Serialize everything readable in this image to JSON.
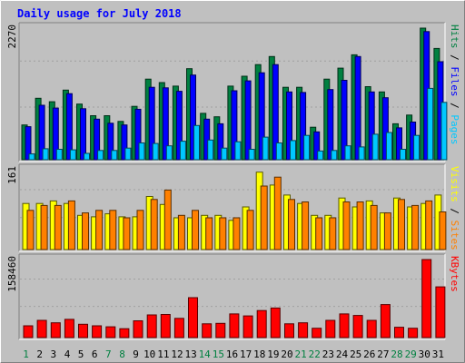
{
  "chart_data": {
    "type": "bar",
    "title": "Daily usage for July 2018",
    "categories": [
      "1",
      "2",
      "3",
      "4",
      "5",
      "6",
      "7",
      "8",
      "9",
      "10",
      "11",
      "12",
      "13",
      "14",
      "15",
      "16",
      "17",
      "18",
      "19",
      "20",
      "21",
      "22",
      "23",
      "24",
      "25",
      "26",
      "27",
      "28",
      "29",
      "30",
      "31"
    ],
    "weekend_days": [
      "1",
      "7",
      "8",
      "14",
      "15",
      "21",
      "22",
      "28",
      "29"
    ],
    "panels": [
      {
        "id": "requests",
        "ymax_label": "2270",
        "ylim": [
          0,
          2270
        ],
        "axis_labels": [
          {
            "text": "Pages",
            "color": "#00c8ff"
          },
          {
            "text": "Files",
            "color": "#0000ff"
          },
          {
            "text": "Hits",
            "color": "#008040"
          }
        ],
        "series": [
          {
            "name": "Hits",
            "color": "#008040",
            "values": [
              600,
              1060,
              1000,
              1200,
              960,
              760,
              760,
              660,
              920,
              1390,
              1330,
              1270,
              1570,
              800,
              740,
              1270,
              1440,
              1640,
              1780,
              1250,
              1250,
              560,
              1390,
              1580,
              1810,
              1260,
              1170,
              620,
              770,
              2270,
              1920
            ]
          },
          {
            "name": "Files",
            "color": "#0000ff",
            "values": [
              570,
              940,
              890,
              1140,
              880,
              700,
              630,
              600,
              870,
              1250,
              1240,
              1180,
              1460,
              700,
              620,
              1190,
              1360,
              1500,
              1640,
              1170,
              1160,
              480,
              1210,
              1370,
              1780,
              1170,
              1070,
              550,
              650,
              2210,
              1690
            ]
          },
          {
            "name": "Pages",
            "color": "#00c8ff",
            "values": [
              100,
              190,
              180,
              170,
              110,
              160,
              160,
              200,
              290,
              280,
              240,
              320,
              590,
              340,
              200,
              310,
              180,
              390,
              290,
              330,
              420,
              150,
              160,
              240,
              220,
              440,
              470,
              180,
              420,
              1230,
              990
            ]
          }
        ]
      },
      {
        "id": "visitors",
        "ymax_label": "161",
        "ylim": [
          0,
          161
        ],
        "axis_labels": [
          {
            "text": "Sites",
            "color": "#ff8000"
          },
          {
            "text": "Visits",
            "color": "#ffff00"
          }
        ],
        "series": [
          {
            "name": "Visits",
            "color": "#ffff00",
            "values": [
              93,
              93,
              98,
              93,
              69,
              66,
              72,
              66,
              66,
              107,
              91,
              64,
              64,
              69,
              69,
              59,
              86,
              156,
              130,
              110,
              93,
              69,
              69,
              104,
              86,
              98,
              74,
              104,
              86,
              93,
              110
            ]
          },
          {
            "name": "Sites",
            "color": "#ff8000",
            "values": [
              79,
              89,
              89,
              98,
              74,
              79,
              79,
              64,
              79,
              101,
              120,
              69,
              79,
              64,
              64,
              64,
              79,
              128,
              146,
              101,
              96,
              64,
              64,
              96,
              96,
              89,
              74,
              101,
              89,
              98,
              76
            ]
          }
        ]
      },
      {
        "id": "kbytes",
        "ymax_label": "158460",
        "ylim": [
          0,
          158460
        ],
        "axis_labels": [
          {
            "text": "KBytes",
            "color": "#ff0000"
          }
        ],
        "series": [
          {
            "name": "KBytes",
            "color": "#ff0000",
            "values": [
              24000,
              35000,
              30000,
              37000,
              27000,
              24000,
              22000,
              18000,
              34000,
              46000,
              47000,
              39000,
              81000,
              28000,
              29000,
              48000,
              44000,
              55000,
              60000,
              28000,
              30000,
              19000,
              35000,
              48000,
              45000,
              35000,
              67000,
              21000,
              19000,
              158460,
              103000
            ]
          }
        ]
      }
    ]
  }
}
